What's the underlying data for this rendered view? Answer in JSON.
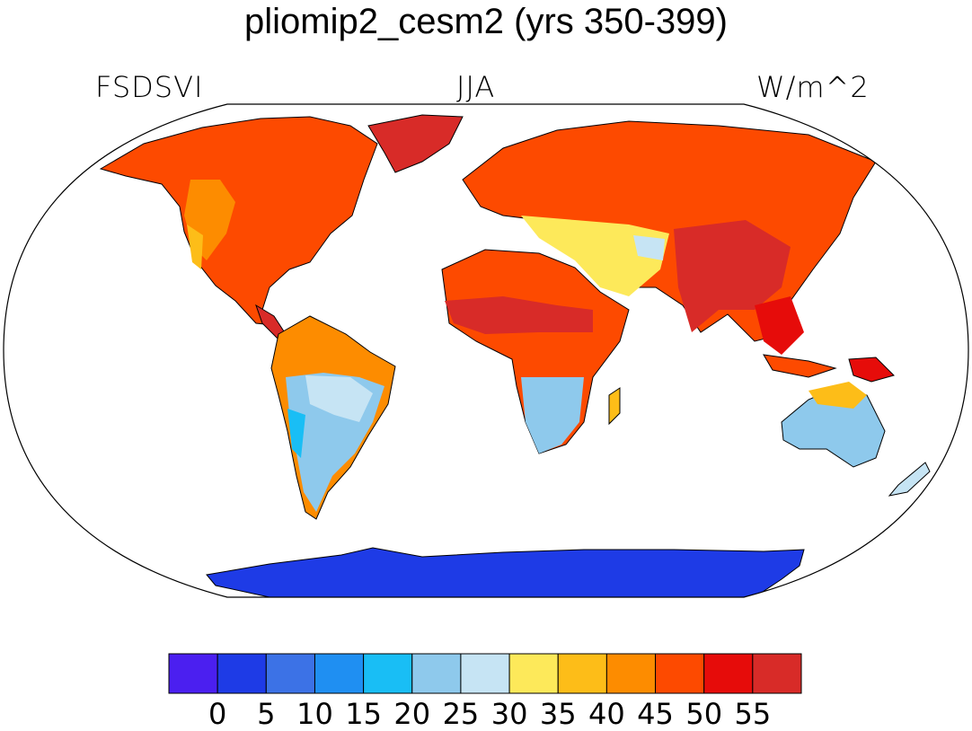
{
  "title": "pliomip2_cesm2 (yrs 350-399)",
  "variable": "FSDSVI",
  "season": "JJA",
  "units": "W/m^2",
  "colorbar": {
    "levels": [
      "0",
      "5",
      "10",
      "15",
      "20",
      "25",
      "30",
      "35",
      "40",
      "45",
      "50",
      "55"
    ],
    "colors": [
      "#4b1ff0",
      "#1e3be6",
      "#3c72e6",
      "#1f8ff2",
      "#19bef5",
      "#8ec9ec",
      "#c6e4f4",
      "#fde95a",
      "#fdbd18",
      "#fd8c00",
      "#fd4a00",
      "#e60c0a",
      "#d82b28"
    ]
  },
  "colors": {
    "ocean": "#ffffff",
    "coastline": "#000000"
  }
}
